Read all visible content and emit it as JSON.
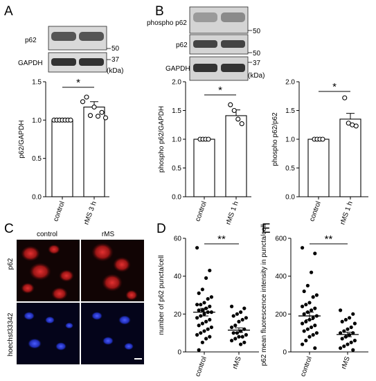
{
  "panels": {
    "A": {
      "letter": "A",
      "blot": {
        "rows": [
          "p62",
          "GAPDH"
        ],
        "markers": [
          "50",
          "37"
        ],
        "unit": "(kDa)"
      },
      "significance": "*"
    },
    "B": {
      "letter": "B",
      "blot": {
        "rows": [
          "phospho p62",
          "p62",
          "GAPDH"
        ],
        "markers": [
          "50",
          "50",
          "37"
        ],
        "unit": "(kDa)"
      },
      "sig_left": "*",
      "sig_right": "*"
    },
    "C": {
      "letter": "C",
      "col_labels": [
        "control",
        "rMS"
      ],
      "row_labels": [
        "p62",
        "hoechst33342"
      ]
    },
    "D": {
      "letter": "D",
      "significance": "**"
    },
    "E": {
      "letter": "E",
      "significance": "**"
    }
  },
  "chart_data": [
    {
      "id": "A",
      "type": "bar",
      "categories": [
        "control",
        "rMS 3 h"
      ],
      "values": [
        1.0,
        1.17
      ],
      "sem": [
        0.0,
        0.07
      ],
      "points": [
        [
          1,
          1,
          1,
          1,
          1,
          1,
          1
        ],
        [
          1.24,
          1.3,
          1.06,
          1.17,
          1.05,
          1.1,
          1.03
        ]
      ],
      "ylabel": "p62/GAPDH",
      "ylim": [
        0,
        1.5
      ],
      "yticks": [
        "0.0",
        "0.5",
        "1.0",
        "1.5"
      ]
    },
    {
      "id": "B1",
      "type": "bar",
      "categories": [
        "control",
        "rMS 1 h"
      ],
      "values": [
        1.0,
        1.41
      ],
      "sem": [
        0.0,
        0.1
      ],
      "points": [
        [
          1,
          1,
          1,
          1
        ],
        [
          1.6,
          1.5,
          1.35,
          1.27
        ]
      ],
      "ylabel": "phospho p62/GAPDH",
      "ylim": [
        0,
        2.0
      ],
      "yticks": [
        "0.0",
        "0.5",
        "1.0",
        "1.5",
        "2.0"
      ]
    },
    {
      "id": "B2",
      "type": "bar",
      "categories": [
        "control",
        "rMS 1 h"
      ],
      "values": [
        1.0,
        1.35
      ],
      "sem": [
        0.0,
        0.1
      ],
      "points": [
        [
          1,
          1,
          1,
          1
        ],
        [
          1.72,
          1.28,
          1.25,
          1.23
        ]
      ],
      "ylabel": "phospho p62/p62",
      "ylim": [
        0,
        2.0
      ],
      "yticks": [
        "0.0",
        "0.5",
        "1.0",
        "1.5",
        "2.0"
      ]
    },
    {
      "id": "D",
      "type": "scatter",
      "categories": [
        "control",
        "rMS"
      ],
      "means": [
        21,
        11.5
      ],
      "sem": [
        2.0,
        1.2
      ],
      "points": [
        [
          55,
          43,
          39,
          33,
          31,
          29,
          28,
          26,
          25,
          25,
          24,
          23,
          22,
          22,
          21,
          21,
          20,
          19,
          18,
          17,
          16,
          15,
          14,
          13,
          12,
          11,
          10,
          9,
          8,
          7,
          5,
          1
        ],
        [
          24,
          23,
          21,
          20,
          19,
          18,
          17,
          16,
          14,
          13,
          12,
          11,
          10,
          10,
          9,
          8,
          8,
          7,
          6,
          5,
          4
        ]
      ],
      "ylabel": "number of p62 puncta/cell",
      "ylim": [
        0,
        60
      ],
      "yticks": [
        "0",
        "20",
        "40",
        "60"
      ]
    },
    {
      "id": "E",
      "type": "scatter",
      "categories": [
        "control",
        "rMS"
      ],
      "means": [
        190,
        92
      ],
      "sem": [
        20,
        12
      ],
      "points": [
        [
          550,
          520,
          420,
          350,
          320,
          300,
          290,
          260,
          250,
          240,
          230,
          220,
          210,
          200,
          190,
          180,
          170,
          160,
          150,
          140,
          130,
          120,
          110,
          100,
          90,
          80,
          60,
          40,
          20
        ],
        [
          220,
          200,
          180,
          170,
          160,
          150,
          130,
          120,
          110,
          100,
          100,
          90,
          80,
          70,
          60,
          50,
          40,
          30,
          20,
          10
        ]
      ],
      "ylabel": "p62 mean fluorescence intensity in puncta/cell",
      "ylim": [
        0,
        600
      ],
      "yticks": [
        "0",
        "200",
        "400",
        "600"
      ]
    }
  ]
}
